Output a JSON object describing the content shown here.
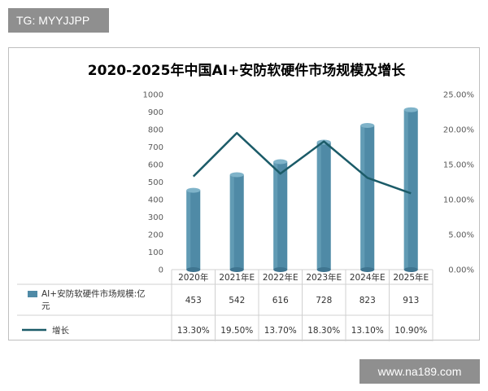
{
  "watermark_top": "TG: MYYJJPP",
  "watermark_bottom": "www.na189.com",
  "chart_data": {
    "type": "bar",
    "title": "2020-2025年中国AI+安防软硬件市场规模及增长",
    "categories": [
      "2020年",
      "2021年E",
      "2022年E",
      "2023年E",
      "2024年E",
      "2025年E"
    ],
    "series": [
      {
        "name": "AI+安防软硬件市场规模:亿元",
        "type": "bar",
        "axis": "left",
        "color": "#4f8aa6",
        "values": [
          453,
          542,
          616,
          728,
          823,
          913
        ]
      },
      {
        "name": "增长",
        "type": "line",
        "axis": "right",
        "color": "#1b5b68",
        "values": [
          0.133,
          0.195,
          0.137,
          0.183,
          0.131,
          0.109
        ]
      }
    ],
    "table_rows": [
      [
        "453",
        "542",
        "616",
        "728",
        "823",
        "913"
      ],
      [
        "13.30%",
        "19.50%",
        "13.70%",
        "18.30%",
        "13.10%",
        "10.90%"
      ]
    ],
    "legend_labels": [
      "AI+安防软硬件市场规模:亿",
      "元",
      "增长"
    ],
    "y_left": {
      "ylim": [
        0,
        1000
      ],
      "ticks": [
        "0",
        "100",
        "200",
        "300",
        "400",
        "500",
        "600",
        "700",
        "800",
        "900",
        "1000"
      ]
    },
    "y_right": {
      "ylim": [
        0,
        0.25
      ],
      "ticks": [
        "0.00%",
        "5.00%",
        "10.00%",
        "15.00%",
        "20.00%",
        "25.00%"
      ]
    },
    "grid": false,
    "legend_placement": "data-table"
  }
}
